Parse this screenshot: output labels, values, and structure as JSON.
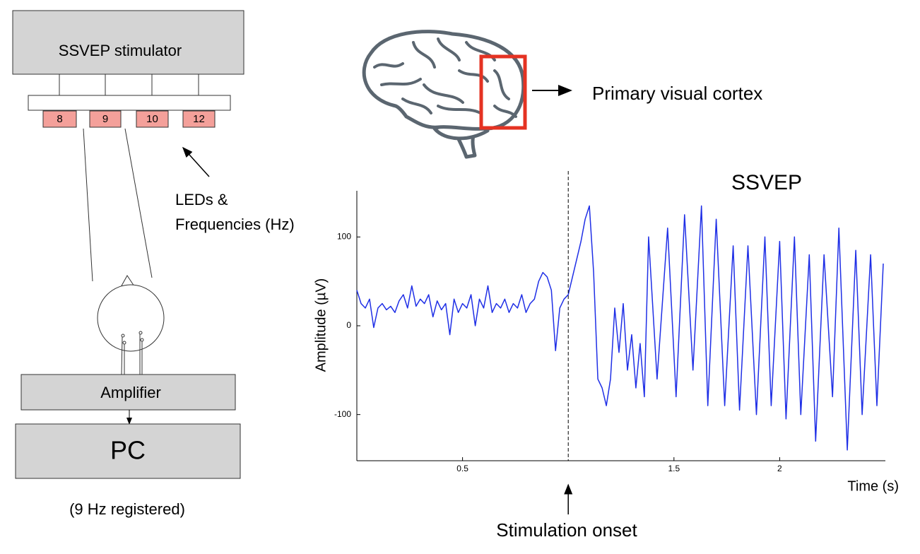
{
  "stimulator": {
    "label": "SSVEP stimulator",
    "leds": [
      "8",
      "9",
      "10",
      "12"
    ]
  },
  "leds_caption": [
    "LEDs &",
    "Frequencies (Hz)"
  ],
  "amplifier": "Amplifier",
  "pc": "PC",
  "pc_note": "(9 Hz registered)",
  "brain_label": "Primary visual cortex",
  "chart_data": {
    "type": "line",
    "title": "SSVEP",
    "ylabel": "Amplitude (µV)",
    "xlabel": "Time (s)",
    "annotation": {
      "text": "Stimulation onset",
      "x": 1
    },
    "x": [
      0,
      0.02,
      0.04,
      0.06,
      0.08,
      0.1,
      0.12,
      0.14,
      0.16,
      0.18,
      0.2,
      0.22,
      0.24,
      0.26,
      0.28,
      0.3,
      0.32,
      0.34,
      0.36,
      0.38,
      0.4,
      0.42,
      0.44,
      0.46,
      0.48,
      0.5,
      0.52,
      0.54,
      0.56,
      0.58,
      0.6,
      0.62,
      0.64,
      0.66,
      0.68,
      0.7,
      0.72,
      0.74,
      0.76,
      0.78,
      0.8,
      0.82,
      0.84,
      0.86,
      0.88,
      0.9,
      0.92,
      0.94,
      0.96,
      0.98,
      1,
      1.02,
      1.04,
      1.06,
      1.08,
      1.1,
      1.12,
      1.14,
      1.16,
      1.18,
      1.2,
      1.22,
      1.24,
      1.26,
      1.28,
      1.3,
      1.32,
      1.34,
      1.36,
      1.38,
      1.42,
      1.47,
      1.51,
      1.55,
      1.59,
      1.63,
      1.66,
      1.7,
      1.74,
      1.78,
      1.81,
      1.85,
      1.89,
      1.93,
      1.96,
      2,
      2.03,
      2.07,
      2.1,
      2.14,
      2.17,
      2.21,
      2.25,
      2.28,
      2.32,
      2.36,
      2.39,
      2.43,
      2.46,
      2.49
    ],
    "series": [
      {
        "color": "#1f2fe6",
        "values": [
          40,
          25,
          20,
          30,
          -2,
          20,
          25,
          18,
          22,
          15,
          28,
          35,
          20,
          45,
          22,
          30,
          25,
          35,
          10,
          28,
          18,
          25,
          -10,
          30,
          15,
          25,
          20,
          35,
          0,
          30,
          20,
          45,
          15,
          25,
          20,
          30,
          15,
          25,
          20,
          35,
          15,
          25,
          30,
          50,
          60,
          55,
          40,
          -28,
          20,
          30,
          35,
          55,
          75,
          95,
          120,
          135,
          60,
          -60,
          -70,
          -90,
          -60,
          20,
          -30,
          25,
          -50,
          -10,
          -70,
          -20,
          -80,
          100,
          -60,
          110,
          -80,
          125,
          -50,
          135,
          -90,
          120,
          -90,
          90,
          -95,
          90,
          -100,
          100,
          -90,
          95,
          -105,
          100,
          -100,
          80,
          -130,
          80,
          -80,
          110,
          -140,
          85,
          -100,
          80,
          -90,
          70
        ]
      }
    ],
    "xlim": [
      0,
      2.5
    ],
    "ylim": [
      -152,
      152
    ],
    "xticks": [
      0.5,
      1.5,
      2
    ],
    "yticks": [
      -100,
      0,
      100
    ]
  }
}
